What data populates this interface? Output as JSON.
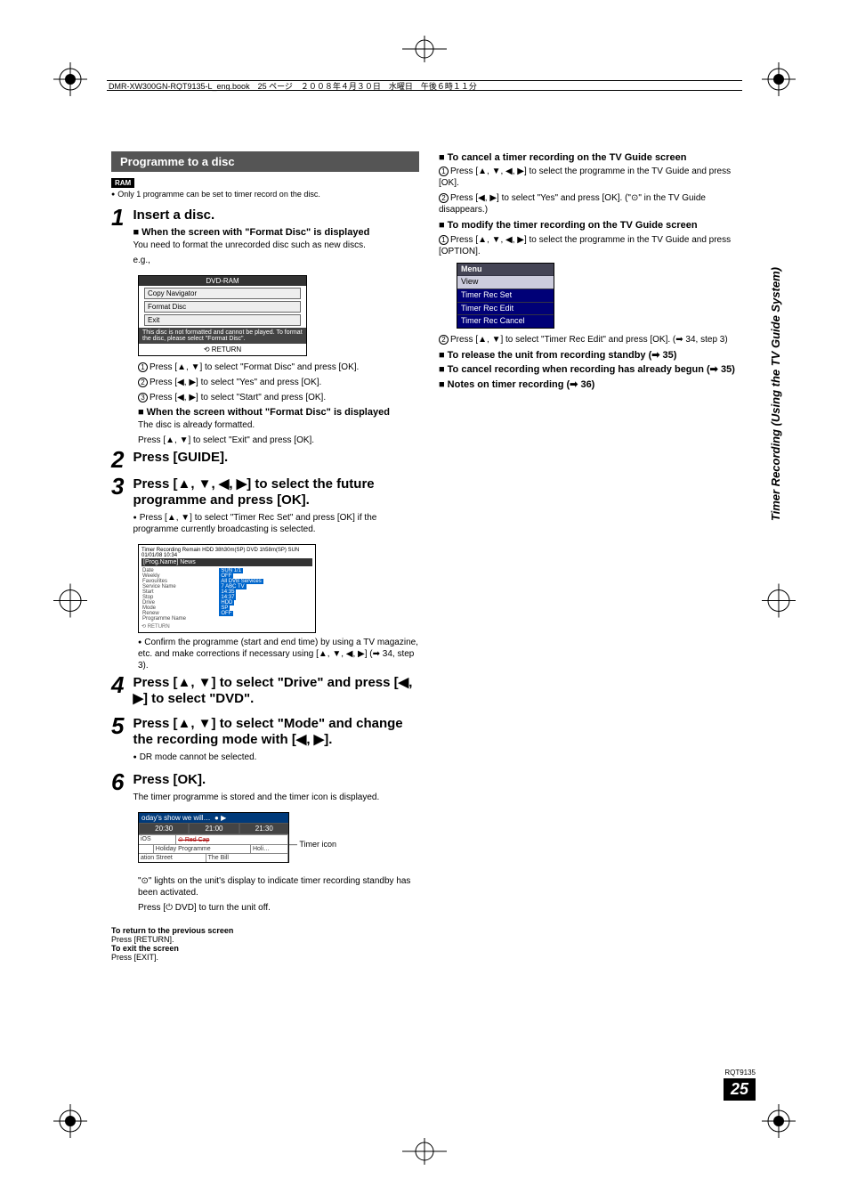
{
  "meta": {
    "header_line": "DMR-XW300GN-RQT9135-L_eng.book　25 ページ　２００８年４月３０日　水曜日　午後６時１１分",
    "doc_code": "RQT9135",
    "page_number": "25",
    "side_label": "Timer Recording (Using the TV Guide System)"
  },
  "left": {
    "section_title": "Programme to a disc",
    "ram_label": "RAM",
    "ram_note": "Only 1 programme can be set to timer record on the disc.",
    "step1": {
      "num": "1",
      "title": "Insert a disc.",
      "sub1_title": "When the screen with \"Format Disc\" is displayed",
      "sub1_body": "You need to format the unrecorded disc such as new discs.",
      "eg": "e.g.,",
      "fig": {
        "title": "DVD-RAM",
        "row1": "Copy Navigator",
        "row2": "Format Disc",
        "row3": "Exit",
        "msg": "This disc is not formatted and cannot be played. To format the disc, please select \"Format Disc\".",
        "return": "RETURN"
      },
      "l1": "Press [▲, ▼] to select \"Format Disc\" and press [OK].",
      "l2": "Press [◀, ▶] to select \"Yes\" and press [OK].",
      "l3": "Press [◀, ▶] to select \"Start\" and press [OK].",
      "sub2_title": "When the screen without \"Format Disc\" is displayed",
      "sub2_body1": "The disc is already formatted.",
      "sub2_body2": "Press [▲, ▼] to select \"Exit\" and press [OK]."
    },
    "step2": {
      "num": "2",
      "title": "Press [GUIDE]."
    },
    "step3": {
      "num": "3",
      "title": "Press [▲, ▼, ◀, ▶] to select the future programme and press [OK].",
      "note": "Press [▲, ▼] to select \"Timer Rec Set\" and press [OK] if the programme currently broadcasting is selected.",
      "fig_hdr": "Timer Recording Remain  HDD 38h30m(SP) DVD  1h58m(SP)  SUN 01/01/08 10:34",
      "fig_sub": "[Prog.Name]  News",
      "rows": [
        {
          "l": "Date",
          "v": "SUN 1/1"
        },
        {
          "l": "Weekly",
          "v": "OFF"
        },
        {
          "l": "Favourites",
          "v": "All DVB Services"
        },
        {
          "l": "Service Name",
          "v": "7  ABC TV"
        },
        {
          "l": "Start",
          "v": "14:35"
        },
        {
          "l": "Stop",
          "v": "14:37"
        },
        {
          "l": "Drive",
          "v": "HDD"
        },
        {
          "l": "Mode",
          "v": "SP"
        },
        {
          "l": "Renew",
          "v": "OFF"
        },
        {
          "l": "Programme Name",
          "v": ""
        }
      ],
      "after": "Confirm the programme (start and end time) by using a TV magazine, etc. and make corrections if necessary using [▲, ▼, ◀, ▶] (➡ 34, step 3)."
    },
    "step4": {
      "num": "4",
      "title": "Press [▲, ▼] to select \"Drive\" and press [◀, ▶] to select \"DVD\"."
    },
    "step5": {
      "num": "5",
      "title": "Press [▲, ▼] to select \"Mode\" and change the recording mode with [◀, ▶].",
      "note": "DR mode cannot be selected."
    },
    "step6": {
      "num": "6",
      "title": "Press [OK].",
      "body": "The timer programme is stored and the timer icon is displayed.",
      "fig": {
        "title": "oday's show we will…",
        "t1": "20:30",
        "t2": "21:00",
        "t3": "21:30",
        "r1a": "iOS",
        "r1b": "Red Cap",
        "r2a": "",
        "r2b": "Holiday Programme",
        "r2c": "Holi…",
        "r3a": "ation Street",
        "r3b": "The Bill"
      },
      "callout": "Timer icon",
      "after1": "\"⊙\" lights on the unit's display to indicate timer recording standby has been activated.",
      "after2": "Press [⏻ DVD] to turn the unit off."
    },
    "footer": {
      "l1b": "To return to the previous screen",
      "l1": "Press [RETURN].",
      "l2b": "To exit the screen",
      "l2": "Press [EXIT]."
    }
  },
  "right": {
    "h1": "To cancel a timer recording on the TV Guide screen",
    "h1_l1": "Press [▲, ▼, ◀, ▶] to select the programme in the TV Guide and press [OK].",
    "h1_l2": "Press [◀, ▶] to select \"Yes\" and press [OK]. (\"⊙\" in the TV Guide disappears.)",
    "h2": "To modify the timer recording on the TV Guide screen",
    "h2_l1": "Press [▲, ▼, ◀, ▶] to select the programme in the TV Guide and press [OPTION].",
    "menu": {
      "title": "Menu",
      "r1": "View",
      "r2": "Timer Rec Set",
      "r3": "Timer Rec Edit",
      "r4": "Timer Rec Cancel"
    },
    "h2_l2": "Press [▲, ▼] to select \"Timer Rec Edit\" and press [OK]. (➡ 34, step 3)",
    "h3": "To release the unit from recording standby (➡ 35)",
    "h4": "To cancel recording when recording has already begun (➡ 35)",
    "h5": "Notes on timer recording (➡ 36)"
  }
}
